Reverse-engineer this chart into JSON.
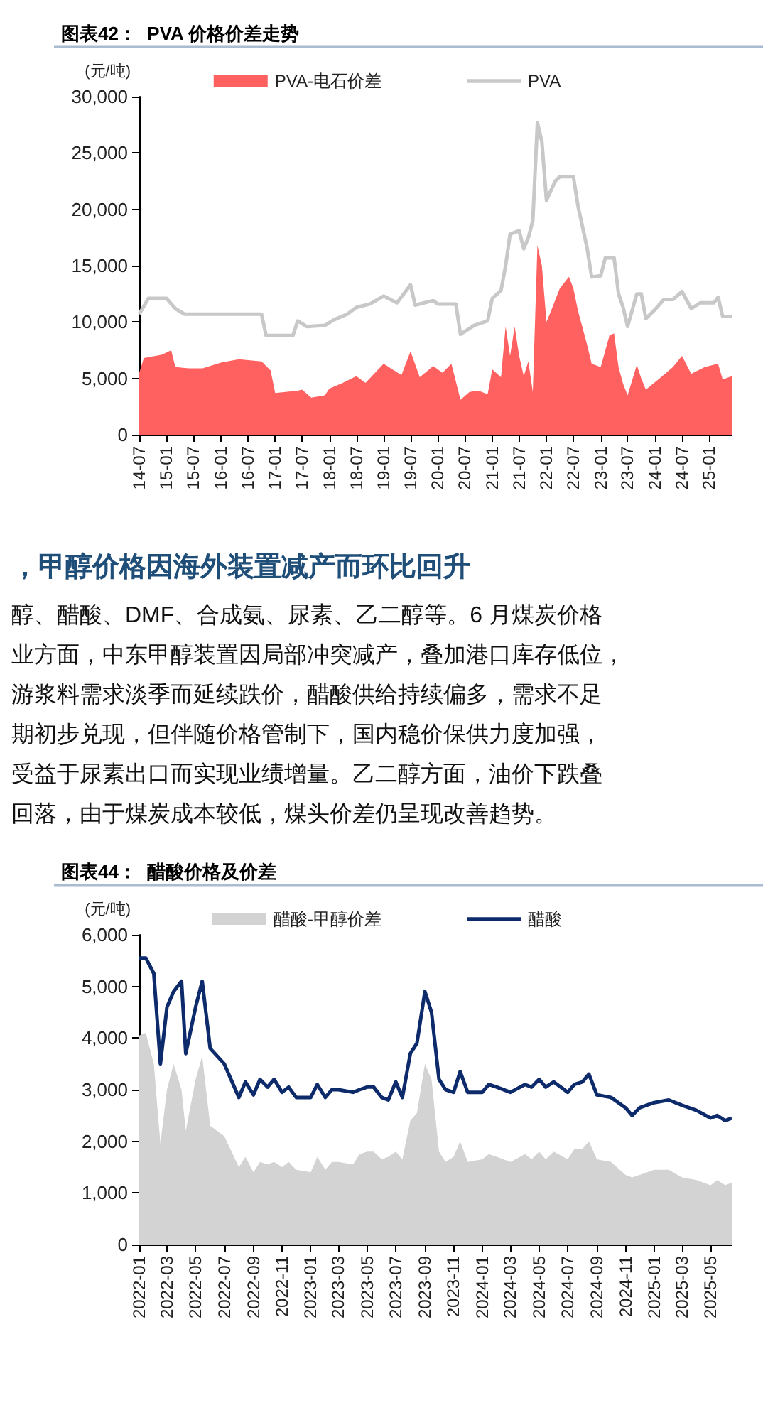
{
  "chart_data": [
    {
      "type": "line",
      "title": "图表42：  PVA 价格价差走势",
      "ylabel": "(元/吨)",
      "legend": "top",
      "grid": false,
      "xlim": [
        "2014-07",
        "2025-06"
      ],
      "xticks": [
        {
          "value": "2014-07",
          "label": "14-07"
        },
        {
          "value": "2015-01",
          "label": "15-01"
        },
        {
          "value": "2015-07",
          "label": "15-07"
        },
        {
          "value": "2016-01",
          "label": "16-01"
        },
        {
          "value": "2016-07",
          "label": "16-07"
        },
        {
          "value": "2017-01",
          "label": "17-01"
        },
        {
          "value": "2017-07",
          "label": "17-07"
        },
        {
          "value": "2018-01",
          "label": "18-01"
        },
        {
          "value": "2018-07",
          "label": "18-07"
        },
        {
          "value": "2019-01",
          "label": "19-01"
        },
        {
          "value": "2019-07",
          "label": "19-07"
        },
        {
          "value": "2020-01",
          "label": "20-01"
        },
        {
          "value": "2020-07",
          "label": "20-07"
        },
        {
          "value": "2021-01",
          "label": "21-01"
        },
        {
          "value": "2021-07",
          "label": "21-07"
        },
        {
          "value": "2022-01",
          "label": "22-01"
        },
        {
          "value": "2022-07",
          "label": "22-07"
        },
        {
          "value": "2023-01",
          "label": "23-01"
        },
        {
          "value": "2023-07",
          "label": "23-07"
        },
        {
          "value": "2024-01",
          "label": "24-01"
        },
        {
          "value": "2024-07",
          "label": "24-07"
        },
        {
          "value": "2025-01",
          "label": "25-01"
        }
      ],
      "ylim": [
        0,
        30000
      ],
      "yticks": [
        0,
        {
          "value": 5000,
          "label": "5,000"
        },
        {
          "value": 10000,
          "label": "10,000"
        },
        {
          "value": 15000,
          "label": "15,000"
        },
        {
          "value": 20000,
          "label": "20,000"
        },
        {
          "value": 25000,
          "label": "25,000"
        },
        {
          "value": 30000,
          "label": "30,000"
        }
      ],
      "series": [
        {
          "name": "PVA-电石价差",
          "type": "area",
          "color": "#ff6161",
          "x": [
            "2014-07",
            "2014-08",
            "2014-12",
            "2015-02",
            "2015-03",
            "2015-06",
            "2015-09",
            "2016-01",
            "2016-05",
            "2016-10",
            "2016-12",
            "2017-01",
            "2017-06",
            "2017-07",
            "2017-09",
            "2017-12",
            "2018-01",
            "2018-04",
            "2018-07",
            "2018-09",
            "2019-01",
            "2019-03",
            "2019-05",
            "2019-07",
            "2019-09",
            "2019-12",
            "2020-02",
            "2020-04",
            "2020-06",
            "2020-08",
            "2020-10",
            "2020-12",
            "2021-01",
            "2021-03",
            "2021-04",
            "2021-05",
            "2021-06",
            "2021-07",
            "2021-08",
            "2021-09",
            "2021-10",
            "2021-11",
            "2021-12",
            "2022-01",
            "2022-02",
            "2022-04",
            "2022-06",
            "2022-07",
            "2022-08",
            "2022-10",
            "2022-11",
            "2023-01",
            "2023-03",
            "2023-04",
            "2023-05",
            "2023-06",
            "2023-07",
            "2023-09",
            "2023-10",
            "2023-11",
            "2024-02",
            "2024-05",
            "2024-07",
            "2024-09",
            "2024-12",
            "2025-03",
            "2025-04",
            "2025-06"
          ],
          "values": [
            5500,
            6800,
            7100,
            7500,
            6000,
            5900,
            5900,
            6400,
            6700,
            6500,
            5700,
            3700,
            3900,
            4000,
            3300,
            3500,
            4100,
            4600,
            5200,
            4600,
            6300,
            5800,
            5300,
            7400,
            5100,
            6100,
            5500,
            6300,
            3100,
            3800,
            3900,
            3600,
            5800,
            5100,
            9600,
            7000,
            9600,
            7000,
            5200,
            6500,
            3800,
            16800,
            15000,
            10000,
            11000,
            13000,
            14000,
            13000,
            11000,
            8000,
            6300,
            6000,
            8800,
            9000,
            6000,
            4500,
            3500,
            6200,
            5000,
            4000,
            5000,
            6000,
            7000,
            5400,
            6000,
            6300,
            4900,
            5200
          ]
        },
        {
          "name": "PVA",
          "type": "line",
          "color": "#c8c8c8",
          "x": [
            "2014-07",
            "2014-09",
            "2015-01",
            "2015-03",
            "2015-05",
            "2016-10",
            "2016-11",
            "2017-05",
            "2017-06",
            "2017-08",
            "2017-12",
            "2018-02",
            "2018-05",
            "2018-07",
            "2018-10",
            "2019-01",
            "2019-04",
            "2019-07",
            "2019-08",
            "2019-12",
            "2020-01",
            "2020-05",
            "2020-06",
            "2020-09",
            "2020-12",
            "2021-01",
            "2021-03",
            "2021-04",
            "2021-05",
            "2021-07",
            "2021-08",
            "2021-09",
            "2021-10",
            "2021-11",
            "2021-12",
            "2022-01",
            "2022-03",
            "2022-04",
            "2022-07",
            "2022-08",
            "2022-10",
            "2022-11",
            "2023-01",
            "2023-02",
            "2023-04",
            "2023-05",
            "2023-06",
            "2023-07",
            "2023-09",
            "2023-10",
            "2023-11",
            "2024-01",
            "2024-03",
            "2024-05",
            "2024-07",
            "2024-09",
            "2024-11",
            "2025-02",
            "2025-03",
            "2025-04",
            "2025-06"
          ],
          "values": [
            10700,
            12100,
            12100,
            11200,
            10700,
            10700,
            8800,
            8800,
            10100,
            9600,
            9700,
            10200,
            10700,
            11300,
            11600,
            12300,
            11700,
            13300,
            11500,
            11900,
            11600,
            11600,
            8900,
            9700,
            10100,
            12100,
            12800,
            15000,
            17800,
            18100,
            16500,
            17500,
            19000,
            27700,
            26000,
            20800,
            22500,
            22900,
            22900,
            20300,
            16600,
            14000,
            14100,
            15700,
            15700,
            12500,
            11300,
            9600,
            12500,
            12500,
            10300,
            11100,
            12000,
            12000,
            12700,
            11200,
            11700,
            11700,
            12200,
            10500,
            10500
          ]
        }
      ]
    },
    {
      "type": "other",
      "title": "，甲醇价格因海外装置减产而环比回升",
      "annotations": [
        "醇、醋酸、DMF、合成氨、尿素、乙二醇等。6 月煤炭价格",
        "业方面，中东甲醇装置因局部冲突减产，叠加港口库存低位，",
        "游浆料需求淡季而延续跌价，醋酸供给持续偏多，需求不足",
        "期初步兑现，但伴随价格管制下，国内稳价保供力度加强，",
        "受益于尿素出口而实现业绩增量。乙二醇方面，油价下跌叠",
        "回落，由于煤炭成本较低，煤头价差仍呈现改善趋势。"
      ]
    },
    {
      "type": "line",
      "title": "图表44：  醋酸价格及价差",
      "ylabel": "(元/吨)",
      "legend": "top",
      "grid": false,
      "xlim": [
        "2022-01",
        "2025-06-15"
      ],
      "xticks": [
        "2022-01",
        "2022-03",
        "2022-05",
        "2022-07",
        "2022-09",
        "2022-11",
        "2023-01",
        "2023-03",
        "2023-05",
        "2023-07",
        "2023-09",
        "2023-11",
        "2024-01",
        "2024-03",
        "2024-05",
        "2024-07",
        "2024-09",
        "2024-11",
        "2025-01",
        "2025-03",
        "2025-05"
      ],
      "ylim": [
        0,
        6000
      ],
      "yticks": [
        0,
        {
          "value": 1000,
          "label": "1,000"
        },
        {
          "value": 2000,
          "label": "2,000"
        },
        {
          "value": 3000,
          "label": "3,000"
        },
        {
          "value": 4000,
          "label": "4,000"
        },
        {
          "value": 5000,
          "label": "5,000"
        },
        {
          "value": 6000,
          "label": "6,000"
        }
      ],
      "x": [
        "2022-01",
        "2022-01-15",
        "2022-02",
        "2022-02-15",
        "2022-03",
        "2022-03-15",
        "2022-04",
        "2022-04-10",
        "2022-05",
        "2022-05-15",
        "2022-06",
        "2022-07",
        "2022-08",
        "2022-08-15",
        "2022-09",
        "2022-09-15",
        "2022-10",
        "2022-10-15",
        "2022-11",
        "2022-11-15",
        "2022-12",
        "2023-01",
        "2023-01-15",
        "2023-02",
        "2023-02-15",
        "2023-03",
        "2023-04",
        "2023-04-15",
        "2023-05",
        "2023-05-15",
        "2023-06",
        "2023-06-15",
        "2023-07",
        "2023-07-15",
        "2023-08",
        "2023-08-15",
        "2023-09",
        "2023-09-15",
        "2023-10",
        "2023-10-15",
        "2023-11",
        "2023-11-15",
        "2023-12",
        "2024-01",
        "2024-01-15",
        "2024-02",
        "2024-03",
        "2024-04",
        "2024-04-15",
        "2024-05",
        "2024-05-15",
        "2024-06",
        "2024-07",
        "2024-07-15",
        "2024-08",
        "2024-08-15",
        "2024-09",
        "2024-10",
        "2024-11",
        "2024-11-15",
        "2024-12",
        "2025-01",
        "2025-02",
        "2025-03",
        "2025-04",
        "2025-05",
        "2025-05-15",
        "2025-06",
        "2025-06-15"
      ],
      "series": [
        {
          "name": "醋酸-甲醇价差",
          "type": "area",
          "color": "#d3d3d3",
          "values": [
            4050,
            4100,
            3500,
            1950,
            3000,
            3500,
            3000,
            2200,
            3200,
            3650,
            2300,
            2100,
            1500,
            1700,
            1400,
            1600,
            1550,
            1600,
            1500,
            1600,
            1450,
            1400,
            1700,
            1450,
            1600,
            1600,
            1550,
            1750,
            1800,
            1800,
            1650,
            1700,
            1800,
            1650,
            2400,
            2550,
            3500,
            3200,
            1800,
            1600,
            1700,
            2000,
            1600,
            1650,
            1750,
            1700,
            1600,
            1750,
            1650,
            1800,
            1650,
            1800,
            1650,
            1850,
            1850,
            2000,
            1650,
            1600,
            1350,
            1300,
            1350,
            1450,
            1450,
            1300,
            1250,
            1150,
            1250,
            1150,
            1200
          ]
        },
        {
          "name": "醋酸",
          "type": "line",
          "color": "#0d2a6b",
          "values": [
            5550,
            5550,
            5250,
            3500,
            4600,
            4900,
            5100,
            3700,
            4600,
            5100,
            3800,
            3500,
            2850,
            3150,
            2900,
            3200,
            3050,
            3200,
            2950,
            3050,
            2850,
            2850,
            3100,
            2850,
            3000,
            3000,
            2950,
            3000,
            3050,
            3050,
            2850,
            2800,
            3150,
            2850,
            3700,
            3900,
            4900,
            4500,
            3200,
            3000,
            2950,
            3350,
            2950,
            2950,
            3100,
            3050,
            2950,
            3100,
            3050,
            3200,
            3050,
            3150,
            2950,
            3100,
            3150,
            3300,
            2900,
            2850,
            2650,
            2500,
            2650,
            2750,
            2800,
            2700,
            2600,
            2450,
            2500,
            2400,
            2450
          ]
        }
      ]
    }
  ]
}
